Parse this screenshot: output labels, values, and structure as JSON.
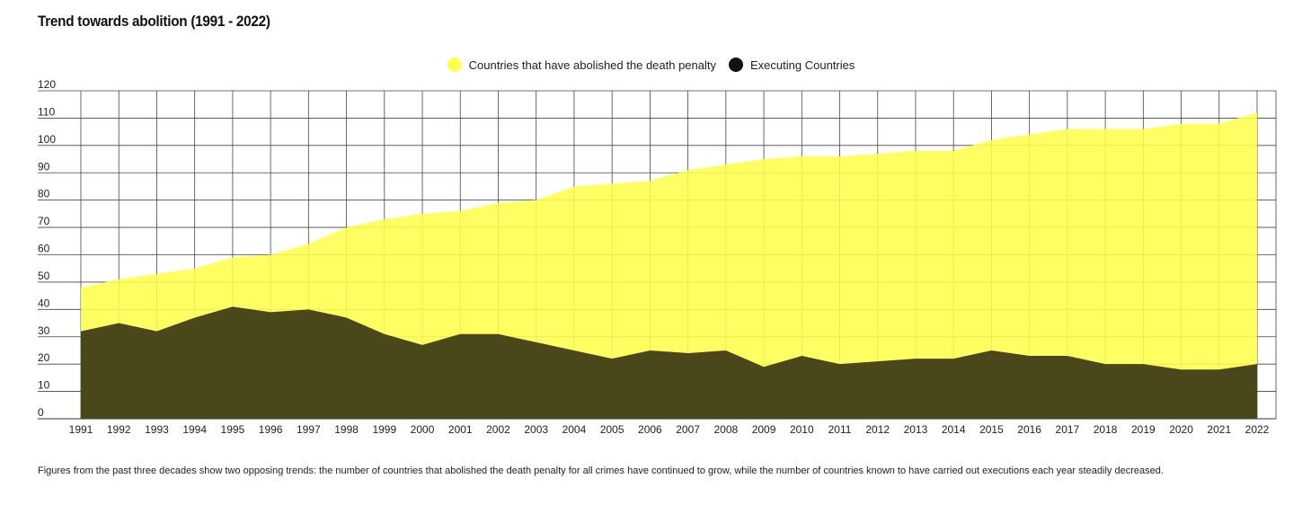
{
  "chart_data": {
    "type": "area",
    "title": "Trend towards abolition (1991 - 2022)",
    "x": [
      "1991",
      "1992",
      "1993",
      "1994",
      "1995",
      "1996",
      "1997",
      "1998",
      "1999",
      "2000",
      "2001",
      "2002",
      "2003",
      "2004",
      "2005",
      "2006",
      "2007",
      "2008",
      "2009",
      "2010",
      "2011",
      "2012",
      "2013",
      "2014",
      "2015",
      "2016",
      "2017",
      "2018",
      "2019",
      "2020",
      "2021",
      "2022"
    ],
    "series": [
      {
        "name": "Countries that have abolished the death penalty",
        "color": "#ffff4d",
        "values": [
          48,
          51,
          53,
          55,
          59,
          60,
          64,
          70,
          73,
          75,
          76,
          79,
          80,
          85,
          86,
          87,
          91,
          93,
          95,
          96,
          96,
          97,
          98,
          98,
          102,
          104,
          106,
          106,
          106,
          108,
          108,
          112
        ]
      },
      {
        "name": "Executing Countries",
        "color": "#4a471a",
        "legend_color": "#111111",
        "values": [
          32,
          35,
          32,
          37,
          41,
          39,
          40,
          37,
          31,
          27,
          31,
          31,
          28,
          25,
          22,
          25,
          24,
          25,
          19,
          23,
          20,
          21,
          22,
          22,
          25,
          23,
          23,
          20,
          20,
          18,
          18,
          20
        ]
      }
    ],
    "ylim": [
      0,
      120
    ],
    "yticks": [
      0,
      10,
      20,
      30,
      40,
      50,
      60,
      70,
      80,
      90,
      100,
      110,
      120
    ],
    "grid": true,
    "legend_position": "top-center"
  },
  "footnote": "Figures from the past three decades show two opposing trends: the number of countries that abolished the death penalty for all crimes have continued to grow, while the number of countries known to have carried out executions each year steadily decreased."
}
